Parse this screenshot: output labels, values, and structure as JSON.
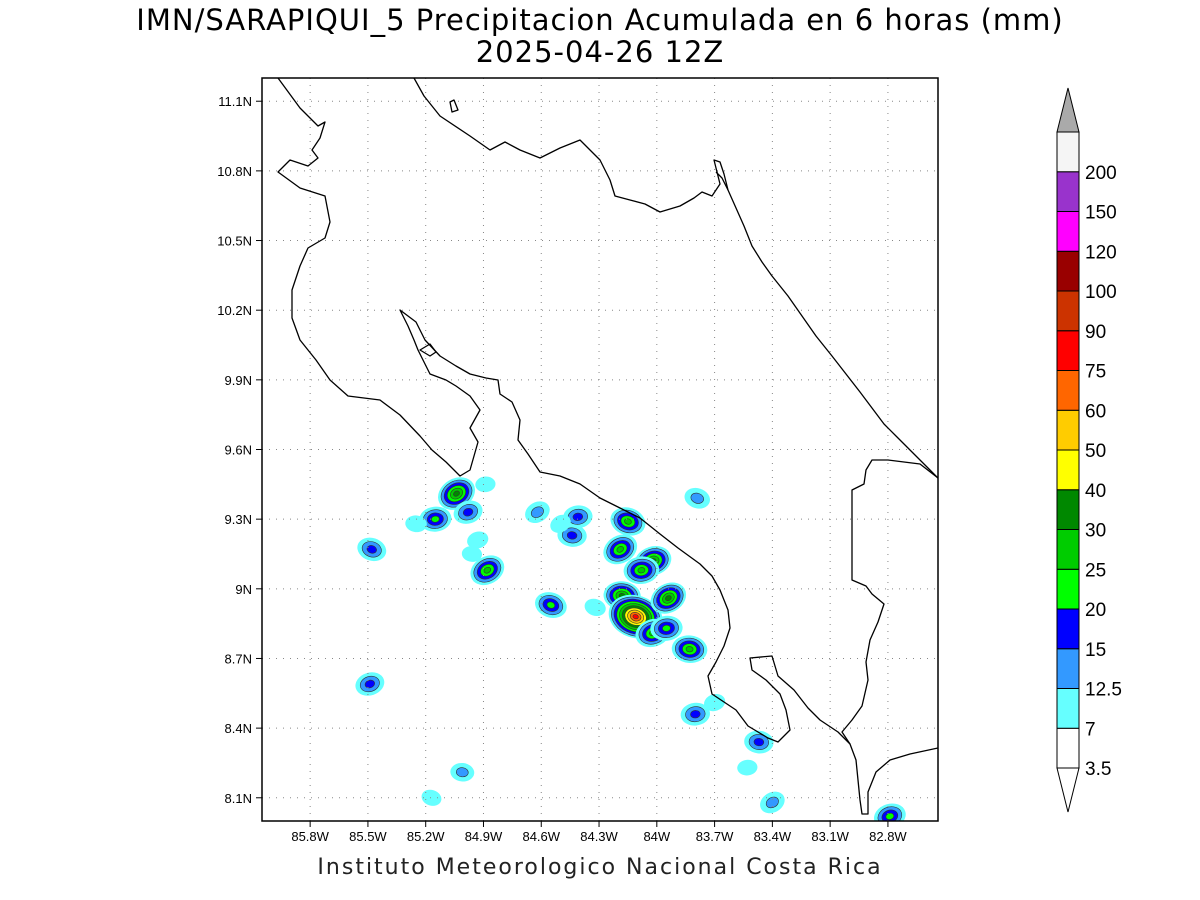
{
  "title": {
    "line1": "IMN/SARAPIQUI_5 Precipitacion Acumulada en 6 horas (mm)",
    "line2": "2025-04-26 12Z"
  },
  "footer": "Instituto Meteorologico Nacional Costa Rica",
  "map": {
    "extent": {
      "lon_min": -86.05,
      "lon_max": -82.54,
      "lat_min": 8.0,
      "lat_max": 11.2
    },
    "lon_ticks": [
      {
        "value": -85.8,
        "label": "85.8W"
      },
      {
        "value": -85.5,
        "label": "85.5W"
      },
      {
        "value": -85.2,
        "label": "85.2W"
      },
      {
        "value": -84.9,
        "label": "84.9W"
      },
      {
        "value": -84.6,
        "label": "84.6W"
      },
      {
        "value": -84.3,
        "label": "84.3W"
      },
      {
        "value": -84.0,
        "label": "84W"
      },
      {
        "value": -83.7,
        "label": "83.7W"
      },
      {
        "value": -83.4,
        "label": "83.4W"
      },
      {
        "value": -83.1,
        "label": "83.1W"
      },
      {
        "value": -82.8,
        "label": "82.8W"
      }
    ],
    "lat_ticks": [
      {
        "value": 11.1,
        "label": "11.1N"
      },
      {
        "value": 10.8,
        "label": "10.8N"
      },
      {
        "value": 10.5,
        "label": "10.5N"
      },
      {
        "value": 10.2,
        "label": "10.2N"
      },
      {
        "value": 9.9,
        "label": "9.9N"
      },
      {
        "value": 9.6,
        "label": "9.6N"
      },
      {
        "value": 9.3,
        "label": "9.3N"
      },
      {
        "value": 9.0,
        "label": "9N"
      },
      {
        "value": 8.7,
        "label": "8.7N"
      },
      {
        "value": 8.4,
        "label": "8.4N"
      },
      {
        "value": 8.1,
        "label": "8.1N"
      }
    ],
    "grid": "dotted"
  },
  "legend": {
    "labels": [
      "3.5",
      "7",
      "12.5",
      "15",
      "20",
      "25",
      "30",
      "40",
      "50",
      "60",
      "75",
      "90",
      "100",
      "120",
      "150",
      "200"
    ],
    "colors": [
      "#ffffff",
      "#66ffff",
      "#3399ff",
      "#0000ff",
      "#00ff00",
      "#00cc00",
      "#008800",
      "#ffff00",
      "#ffcc00",
      "#ff6600",
      "#ff0000",
      "#cc3300",
      "#990000",
      "#ff00ff",
      "#9933cc",
      "#f5f5f5"
    ],
    "over_color": "#aaaaaa",
    "under_color": "#ffffff"
  },
  "precip_cells": [
    {
      "lon": -85.04,
      "lat": 9.41,
      "peak_mm": 28
    },
    {
      "lon": -84.98,
      "lat": 9.33,
      "peak_mm": 13
    },
    {
      "lon": -85.15,
      "lat": 9.3,
      "peak_mm": 17
    },
    {
      "lon": -85.25,
      "lat": 9.28,
      "peak_mm": 5
    },
    {
      "lon": -85.48,
      "lat": 9.17,
      "peak_mm": 13
    },
    {
      "lon": -84.88,
      "lat": 9.08,
      "peak_mm": 22
    },
    {
      "lon": -84.93,
      "lat": 9.21,
      "peak_mm": 5
    },
    {
      "lon": -84.41,
      "lat": 9.31,
      "peak_mm": 13
    },
    {
      "lon": -84.44,
      "lat": 9.23,
      "peak_mm": 13
    },
    {
      "lon": -84.15,
      "lat": 9.29,
      "peak_mm": 22
    },
    {
      "lon": -84.19,
      "lat": 9.17,
      "peak_mm": 22
    },
    {
      "lon": -84.02,
      "lat": 9.12,
      "peak_mm": 25
    },
    {
      "lon": -84.08,
      "lat": 9.08,
      "peak_mm": 22
    },
    {
      "lon": -84.18,
      "lat": 8.97,
      "peak_mm": 25
    },
    {
      "lon": -84.11,
      "lat": 8.88,
      "peak_mm": 65
    },
    {
      "lon": -83.94,
      "lat": 8.96,
      "peak_mm": 25
    },
    {
      "lon": -84.02,
      "lat": 8.81,
      "peak_mm": 22
    },
    {
      "lon": -83.95,
      "lat": 8.83,
      "peak_mm": 17
    },
    {
      "lon": -83.83,
      "lat": 8.74,
      "peak_mm": 22
    },
    {
      "lon": -84.55,
      "lat": 8.93,
      "peak_mm": 17
    },
    {
      "lon": -84.62,
      "lat": 9.33,
      "peak_mm": 9
    },
    {
      "lon": -85.49,
      "lat": 8.59,
      "peak_mm": 13
    },
    {
      "lon": -83.8,
      "lat": 8.46,
      "peak_mm": 13
    },
    {
      "lon": -83.47,
      "lat": 8.34,
      "peak_mm": 13
    },
    {
      "lon": -83.79,
      "lat": 9.39,
      "peak_mm": 9
    },
    {
      "lon": -83.4,
      "lat": 8.08,
      "peak_mm": 9
    },
    {
      "lon": -82.79,
      "lat": 8.02,
      "peak_mm": 17
    },
    {
      "lon": -84.89,
      "lat": 9.45,
      "peak_mm": 4
    },
    {
      "lon": -85.01,
      "lat": 8.21,
      "peak_mm": 7
    },
    {
      "lon": -84.32,
      "lat": 8.92,
      "peak_mm": 5
    },
    {
      "lon": -84.5,
      "lat": 9.28,
      "peak_mm": 5
    },
    {
      "lon": -83.7,
      "lat": 8.51,
      "peak_mm": 5
    },
    {
      "lon": -83.53,
      "lat": 8.23,
      "peak_mm": 4
    },
    {
      "lon": -84.96,
      "lat": 9.15,
      "peak_mm": 4
    },
    {
      "lon": -85.17,
      "lat": 8.1,
      "peak_mm": 4
    }
  ]
}
